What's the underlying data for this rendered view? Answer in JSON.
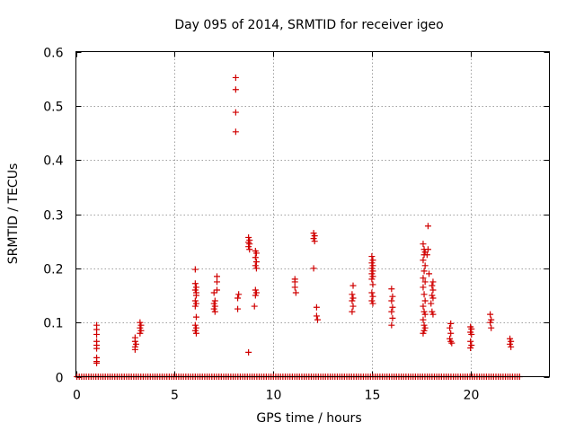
{
  "chart_data": {
    "type": "scatter",
    "title": "Day 095 of 2014, SRMTID for receiver igeo",
    "xlabel": "GPS time / hours",
    "ylabel": "SRMTID / TECUs",
    "xlim": [
      0,
      24
    ],
    "ylim": [
      0,
      0.6
    ],
    "x_ticks": [
      0,
      5,
      10,
      15,
      20
    ],
    "x_tick_labels": [
      "0",
      "5",
      "10",
      "15",
      "20"
    ],
    "y_ticks": [
      0,
      0.1,
      0.2,
      0.3,
      0.4,
      0.5,
      0.6
    ],
    "y_tick_labels": [
      "0",
      "0.1",
      "0.2",
      "0.3",
      "0.4",
      "0.5",
      "0.6"
    ],
    "grid": true,
    "marker": "+",
    "color": "#d00000",
    "zero_baseline_range": [
      0.05,
      22.6
    ],
    "zero_baseline_step": 0.12,
    "series": [
      {
        "name": "SRMTID",
        "points": [
          [
            1.05,
            0.095
          ],
          [
            1.05,
            0.087
          ],
          [
            1.05,
            0.078
          ],
          [
            1.05,
            0.065
          ],
          [
            1.05,
            0.058
          ],
          [
            1.05,
            0.052
          ],
          [
            1.05,
            0.035
          ],
          [
            1.05,
            0.028
          ],
          [
            1.05,
            0.025
          ],
          [
            3.0,
            0.072
          ],
          [
            3.0,
            0.065
          ],
          [
            3.05,
            0.06
          ],
          [
            3.0,
            0.055
          ],
          [
            3.0,
            0.05
          ],
          [
            3.25,
            0.1
          ],
          [
            3.3,
            0.095
          ],
          [
            3.25,
            0.09
          ],
          [
            3.3,
            0.085
          ],
          [
            3.25,
            0.08
          ],
          [
            6.05,
            0.198
          ],
          [
            6.05,
            0.172
          ],
          [
            6.1,
            0.165
          ],
          [
            6.05,
            0.16
          ],
          [
            6.1,
            0.155
          ],
          [
            6.1,
            0.15
          ],
          [
            6.05,
            0.14
          ],
          [
            6.1,
            0.135
          ],
          [
            6.05,
            0.13
          ],
          [
            6.1,
            0.11
          ],
          [
            6.05,
            0.095
          ],
          [
            6.1,
            0.09
          ],
          [
            6.05,
            0.085
          ],
          [
            6.1,
            0.08
          ],
          [
            7.0,
            0.155
          ],
          [
            7.05,
            0.14
          ],
          [
            7.0,
            0.135
          ],
          [
            7.05,
            0.13
          ],
          [
            7.0,
            0.125
          ],
          [
            7.05,
            0.12
          ],
          [
            7.15,
            0.185
          ],
          [
            7.15,
            0.175
          ],
          [
            7.15,
            0.16
          ],
          [
            8.1,
            0.552
          ],
          [
            8.1,
            0.53
          ],
          [
            8.1,
            0.488
          ],
          [
            8.1,
            0.452
          ],
          [
            8.25,
            0.152
          ],
          [
            8.2,
            0.145
          ],
          [
            8.2,
            0.125
          ],
          [
            8.75,
            0.257
          ],
          [
            8.8,
            0.252
          ],
          [
            8.75,
            0.248
          ],
          [
            8.8,
            0.245
          ],
          [
            8.75,
            0.24
          ],
          [
            8.8,
            0.235
          ],
          [
            8.75,
            0.045
          ],
          [
            9.1,
            0.232
          ],
          [
            9.15,
            0.228
          ],
          [
            9.1,
            0.22
          ],
          [
            9.15,
            0.212
          ],
          [
            9.1,
            0.205
          ],
          [
            9.15,
            0.2
          ],
          [
            9.1,
            0.16
          ],
          [
            9.15,
            0.155
          ],
          [
            9.1,
            0.15
          ],
          [
            9.05,
            0.13
          ],
          [
            11.1,
            0.18
          ],
          [
            11.1,
            0.175
          ],
          [
            11.1,
            0.165
          ],
          [
            11.15,
            0.155
          ],
          [
            12.05,
            0.265
          ],
          [
            12.1,
            0.26
          ],
          [
            12.05,
            0.255
          ],
          [
            12.1,
            0.25
          ],
          [
            12.05,
            0.2
          ],
          [
            12.2,
            0.128
          ],
          [
            12.2,
            0.112
          ],
          [
            12.25,
            0.105
          ],
          [
            14.05,
            0.168
          ],
          [
            14.0,
            0.152
          ],
          [
            14.05,
            0.145
          ],
          [
            14.0,
            0.14
          ],
          [
            14.05,
            0.13
          ],
          [
            14.0,
            0.12
          ],
          [
            15.0,
            0.222
          ],
          [
            15.05,
            0.215
          ],
          [
            15.0,
            0.21
          ],
          [
            15.05,
            0.205
          ],
          [
            15.0,
            0.2
          ],
          [
            15.05,
            0.195
          ],
          [
            15.0,
            0.19
          ],
          [
            15.05,
            0.185
          ],
          [
            15.0,
            0.18
          ],
          [
            15.05,
            0.17
          ],
          [
            15.0,
            0.155
          ],
          [
            15.05,
            0.148
          ],
          [
            15.0,
            0.14
          ],
          [
            15.05,
            0.135
          ],
          [
            16.0,
            0.162
          ],
          [
            16.05,
            0.148
          ],
          [
            16.0,
            0.14
          ],
          [
            16.05,
            0.128
          ],
          [
            16.0,
            0.12
          ],
          [
            16.05,
            0.108
          ],
          [
            16.0,
            0.095
          ],
          [
            17.6,
            0.245
          ],
          [
            17.65,
            0.235
          ],
          [
            17.7,
            0.23
          ],
          [
            17.65,
            0.225
          ],
          [
            17.6,
            0.215
          ],
          [
            17.7,
            0.205
          ],
          [
            17.65,
            0.195
          ],
          [
            17.6,
            0.182
          ],
          [
            17.7,
            0.175
          ],
          [
            17.6,
            0.165
          ],
          [
            17.65,
            0.152
          ],
          [
            17.7,
            0.14
          ],
          [
            17.6,
            0.13
          ],
          [
            17.65,
            0.12
          ],
          [
            17.7,
            0.115
          ],
          [
            17.6,
            0.105
          ],
          [
            17.65,
            0.095
          ],
          [
            17.7,
            0.09
          ],
          [
            17.65,
            0.085
          ],
          [
            17.6,
            0.08
          ],
          [
            17.85,
            0.278
          ],
          [
            17.85,
            0.235
          ],
          [
            17.8,
            0.225
          ],
          [
            17.9,
            0.19
          ],
          [
            18.1,
            0.175
          ],
          [
            18.05,
            0.168
          ],
          [
            18.1,
            0.16
          ],
          [
            18.05,
            0.15
          ],
          [
            18.1,
            0.145
          ],
          [
            18.0,
            0.135
          ],
          [
            18.05,
            0.12
          ],
          [
            18.1,
            0.115
          ],
          [
            19.0,
            0.098
          ],
          [
            18.95,
            0.09
          ],
          [
            19.0,
            0.08
          ],
          [
            18.95,
            0.07
          ],
          [
            19.0,
            0.065
          ],
          [
            19.05,
            0.062
          ],
          [
            20.0,
            0.092
          ],
          [
            20.05,
            0.088
          ],
          [
            20.0,
            0.082
          ],
          [
            20.05,
            0.078
          ],
          [
            20.0,
            0.065
          ],
          [
            20.05,
            0.058
          ],
          [
            20.0,
            0.053
          ],
          [
            21.0,
            0.115
          ],
          [
            21.05,
            0.105
          ],
          [
            21.0,
            0.1
          ],
          [
            21.05,
            0.09
          ],
          [
            22.0,
            0.07
          ],
          [
            22.05,
            0.065
          ],
          [
            22.0,
            0.06
          ],
          [
            22.05,
            0.055
          ]
        ]
      }
    ]
  }
}
